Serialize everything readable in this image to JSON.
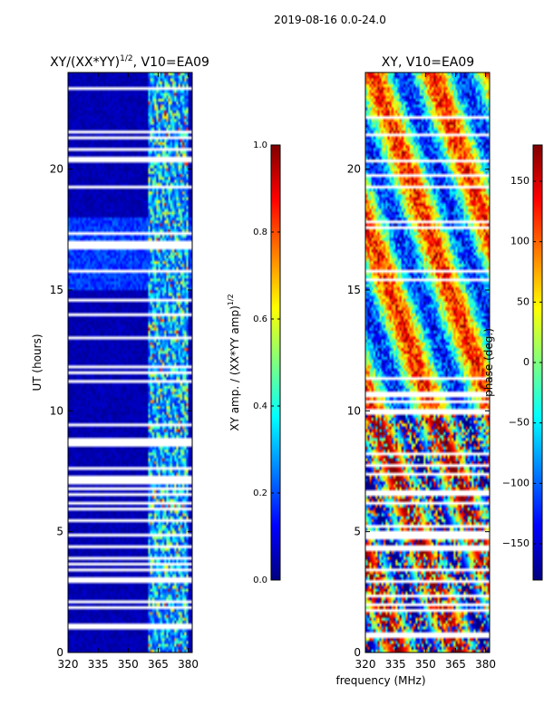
{
  "suptitle": "2019-08-16 0.0-24.0",
  "xlabel_shared": "frequency (MHz)",
  "colors": {
    "jet": [
      "#00007f",
      "#0000ff",
      "#007fff",
      "#00ffff",
      "#7fff7f",
      "#ffff00",
      "#ff7f00",
      "#ff0000",
      "#7f0000"
    ],
    "gap": "#ffffff",
    "axis": "#000000"
  },
  "chart_data": [
    {
      "type": "heatmap",
      "title_main": "XY/(XX*YY)",
      "title_sup": "1/2",
      "title_rest": ", V10=EA09",
      "xlabel": "",
      "ylabel": "UT (hours)",
      "xlim": [
        320,
        382
      ],
      "ylim": [
        0,
        24
      ],
      "xticks": [
        320,
        335,
        350,
        365,
        380
      ],
      "xtick_labels": [
        "320",
        "335",
        "350",
        "365",
        "380"
      ],
      "yticks": [
        0,
        5,
        10,
        15,
        20
      ],
      "ytick_labels": [
        "0",
        "5",
        "10",
        "15",
        "20"
      ],
      "bright_band_mhz": [
        360,
        380
      ],
      "colorbar": {
        "label_main": "XY amp. / (XX*YY amp)",
        "label_sup": "1/2",
        "range": [
          0.0,
          1.0
        ],
        "ticks": [
          0.0,
          0.2,
          0.4,
          0.6,
          0.8,
          1.0
        ],
        "tick_labels": [
          "0.0",
          "0.2",
          "0.4",
          "0.6",
          "0.8",
          "1.0"
        ]
      }
    },
    {
      "type": "heatmap",
      "title_main": "XY, V10=EA09",
      "xlabel": "frequency (MHz)",
      "ylabel": "",
      "xlim": [
        320,
        382
      ],
      "ylim": [
        0,
        24
      ],
      "xticks": [
        320,
        335,
        350,
        365,
        380
      ],
      "xtick_labels": [
        "320",
        "335",
        "350",
        "365",
        "380"
      ],
      "yticks": [
        0,
        5,
        10,
        15,
        20
      ],
      "ytick_labels": [
        "0",
        "5",
        "10",
        "15",
        "20"
      ],
      "colorbar": {
        "label_main": "phase (deg.)",
        "range": [
          -180,
          180
        ],
        "ticks": [
          -150,
          -100,
          -50,
          0,
          50,
          100,
          150
        ],
        "tick_labels": [
          "−150",
          "−100",
          "−50",
          "0",
          "50",
          "100",
          "150"
        ]
      }
    }
  ]
}
